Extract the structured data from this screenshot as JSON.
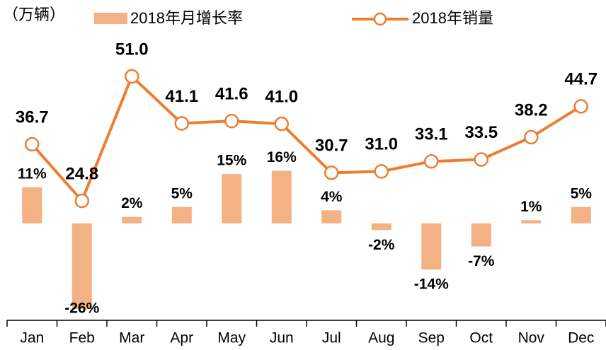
{
  "chart_data": {
    "type": "bar_line",
    "unit_label": "（万辆）",
    "categories": [
      "Jan",
      "Feb",
      "Mar",
      "Apr",
      "May",
      "Jun",
      "Jul",
      "Aug",
      "Sep",
      "Oct",
      "Nov",
      "Dec"
    ],
    "series": [
      {
        "name": "2018年月增长率",
        "type": "bar",
        "color": "#f4b183",
        "values": [
          11,
          -26,
          2,
          5,
          15,
          16,
          4,
          -2,
          -14,
          -7,
          1,
          5
        ],
        "value_labels": [
          "11%",
          "-26%",
          "2%",
          "5%",
          "15%",
          "16%",
          "4%",
          "-2%",
          "-14%",
          "-7%",
          "1%",
          "5%"
        ]
      },
      {
        "name": "2018年销量",
        "type": "line",
        "color": "#ed7d31",
        "axis": "y2",
        "values": [
          36.7,
          24.8,
          51.0,
          41.1,
          41.6,
          41.0,
          30.7,
          31.0,
          33.1,
          33.5,
          38.2,
          44.7
        ],
        "value_labels": [
          "36.7",
          "24.8",
          "51.0",
          "41.1",
          "41.6",
          "41.0",
          "30.7",
          "31.0",
          "33.1",
          "33.5",
          "38.2",
          "44.7"
        ]
      }
    ],
    "legend": "top"
  }
}
